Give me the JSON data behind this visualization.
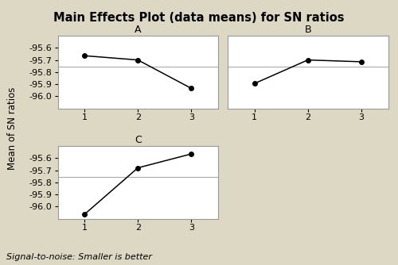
{
  "title": "Main Effects Plot (data means) for SN ratios",
  "ylabel": "Mean of SN ratios",
  "footnote": "Signal-to-noise: Smaller is better",
  "background_color": "#ddd8c4",
  "panel_bg": "#ffffff",
  "header_bg": "#e8e4d8",
  "subplots": [
    {
      "label": "A",
      "x": [
        1,
        2,
        3
      ],
      "y": [
        -95.665,
        -95.7,
        -95.935
      ]
    },
    {
      "label": "B",
      "x": [
        1,
        2,
        3
      ],
      "y": [
        -95.895,
        -95.7,
        -95.715
      ]
    },
    {
      "label": "C",
      "x": [
        1,
        2,
        3
      ],
      "y": [
        -96.065,
        -95.68,
        -95.565
      ]
    }
  ],
  "ylim": [
    -96.1,
    -95.5
  ],
  "yticks": [
    -95.6,
    -95.7,
    -95.8,
    -95.9,
    -96.0
  ],
  "ytick_labels": [
    "-95.6",
    "-95.7",
    "-95.8",
    "-95.9",
    "-96.0"
  ],
  "xticks": [
    1,
    2,
    3
  ],
  "xtick_labels": [
    "1",
    "2",
    "3"
  ],
  "refline_y": -95.753,
  "line_color": "#000000",
  "marker": "o",
  "marker_size": 4,
  "marker_facecolor": "#000000",
  "title_fontsize": 10.5,
  "label_fontsize": 8.5,
  "tick_fontsize": 8,
  "subplot_label_fontsize": 9,
  "footnote_fontsize": 8,
  "border_color": "#999999"
}
